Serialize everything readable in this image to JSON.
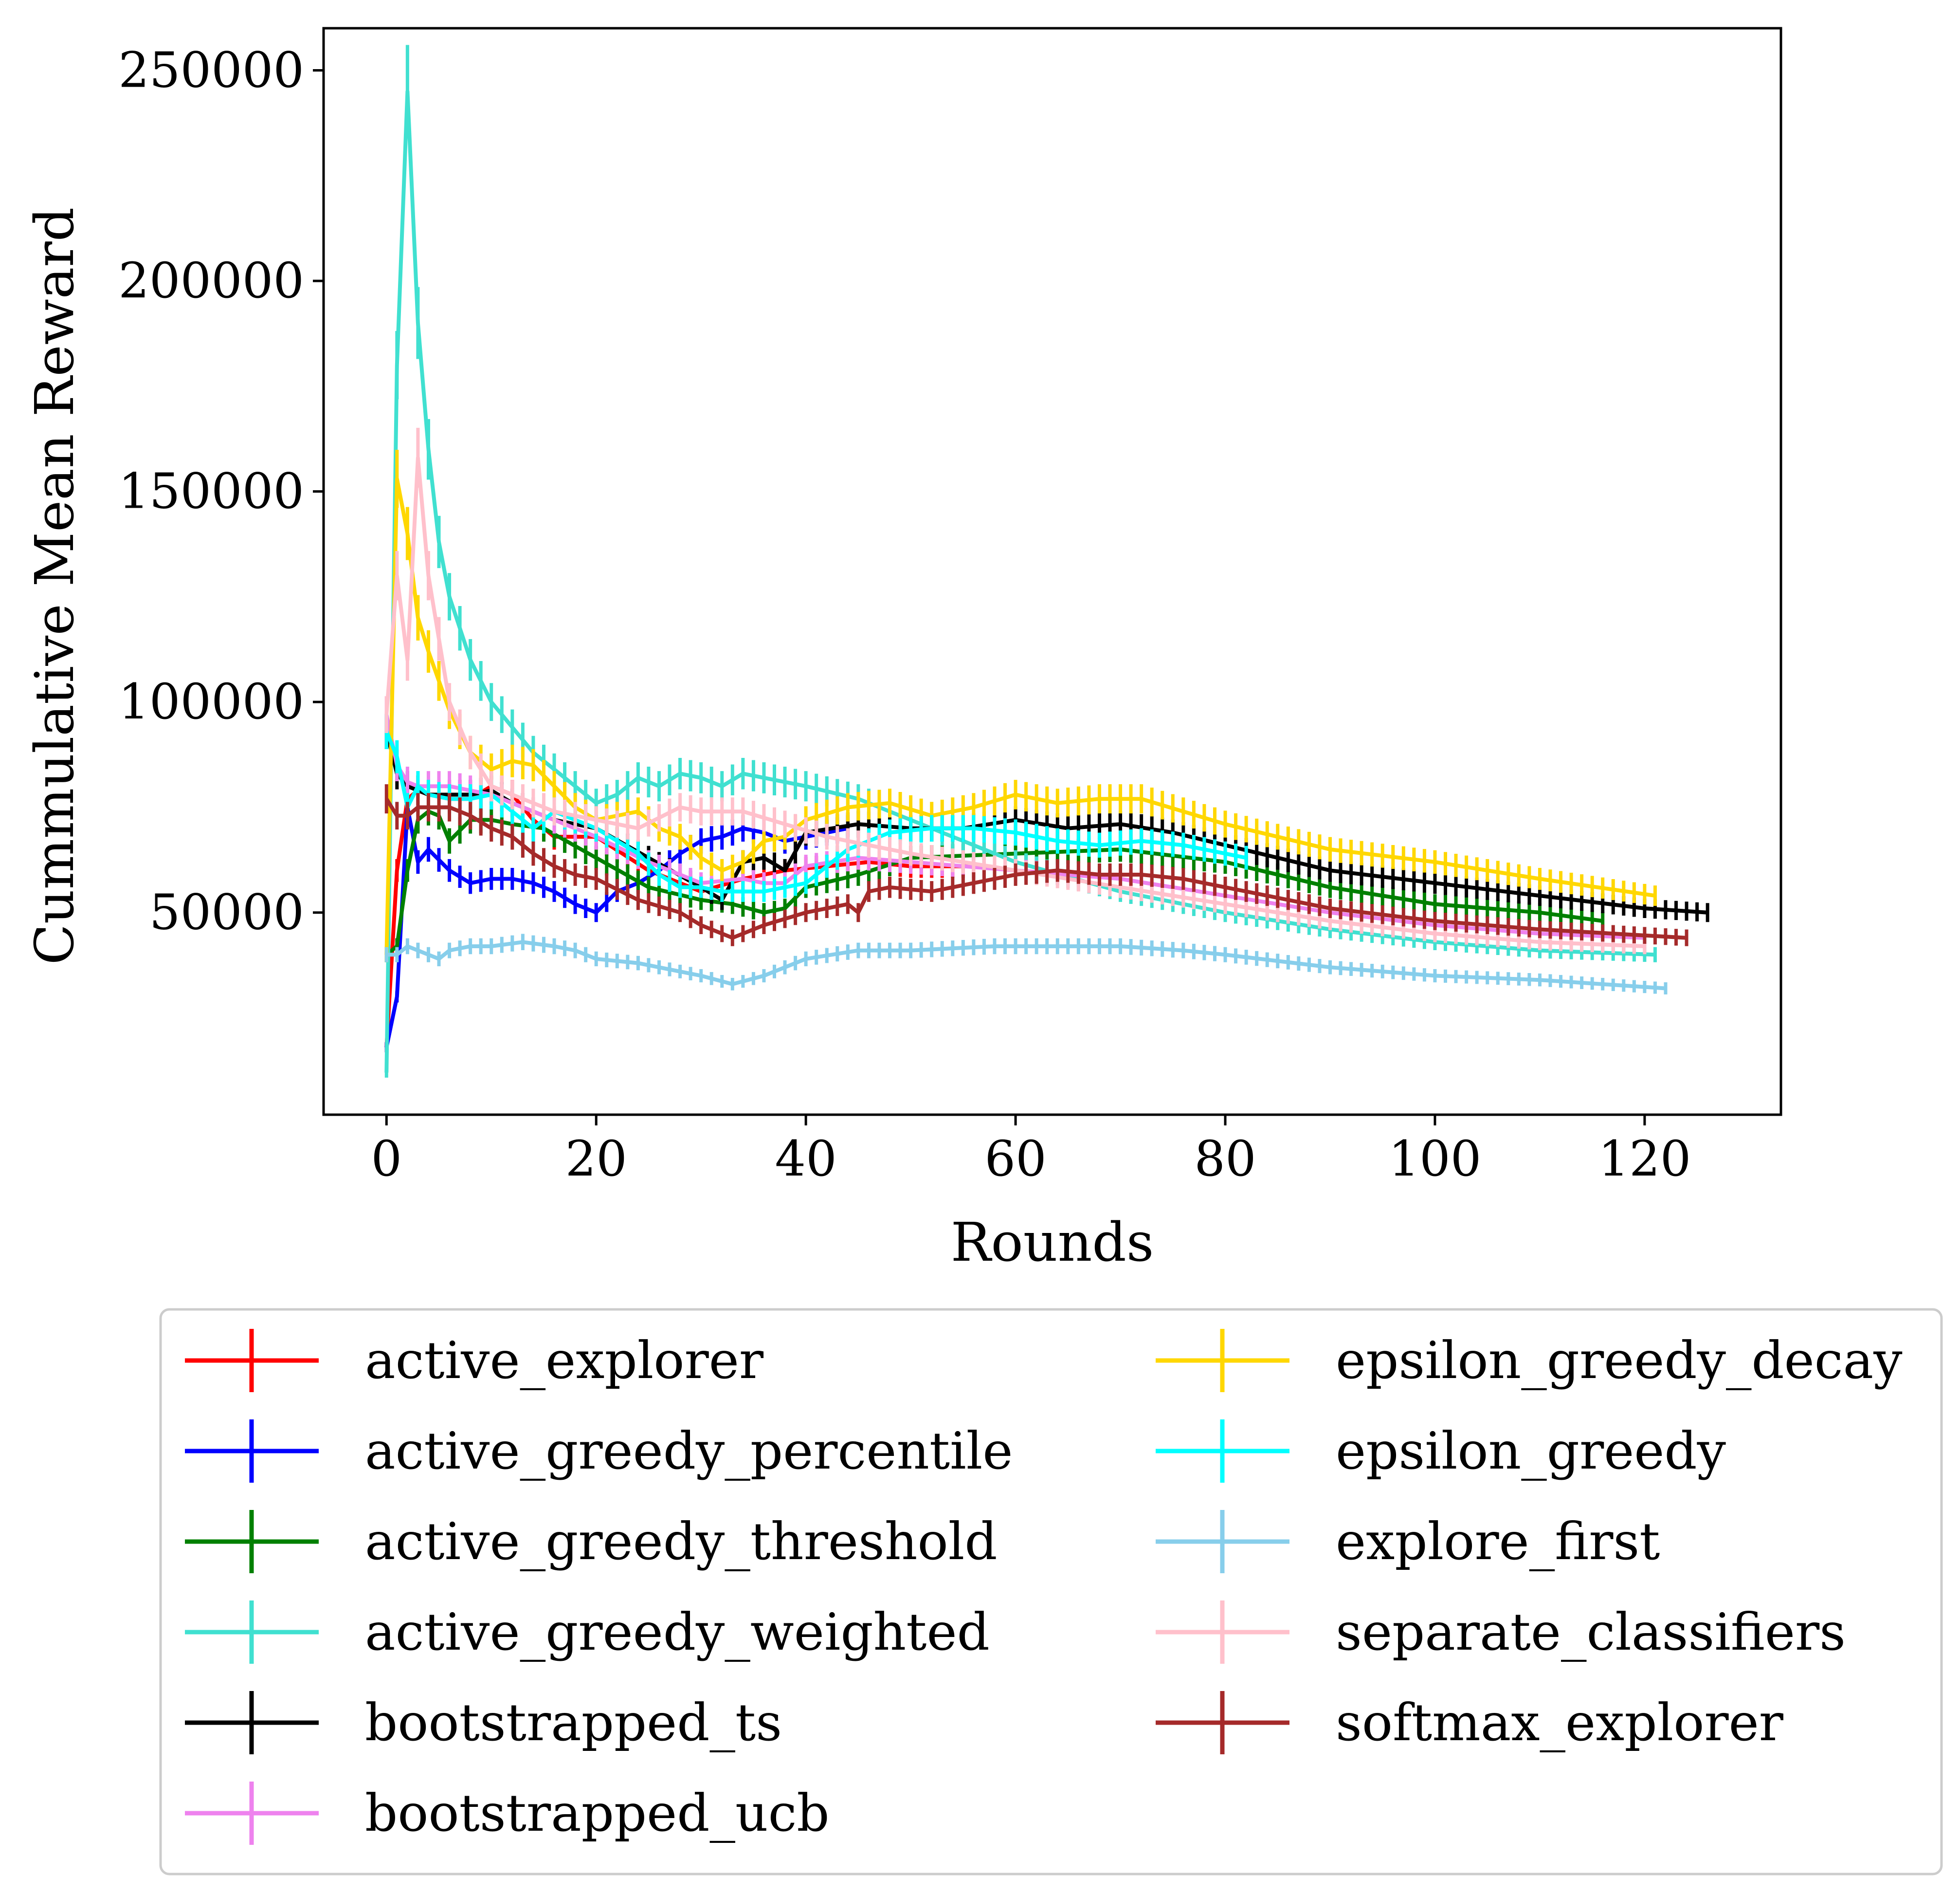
{
  "chart_data": {
    "type": "line",
    "xlabel": "Rounds",
    "ylabel": "Cummulative Mean Reward",
    "xlim": [
      -6,
      133
    ],
    "ylim": [
      2000,
      260000
    ],
    "xticks": [
      0,
      20,
      40,
      60,
      80,
      100,
      120
    ],
    "yticks": [
      50000,
      100000,
      150000,
      200000,
      250000
    ],
    "xtick_labels": [
      "0",
      "20",
      "40",
      "60",
      "80",
      "100",
      "120"
    ],
    "ytick_labels": [
      "50000",
      "100000",
      "150000",
      "200000",
      "250000"
    ],
    "legend_position": "below plot, two columns",
    "grid": false,
    "error_bars": true,
    "series": [
      {
        "name": "active_explorer",
        "color": "#ff0000",
        "x": [
          0,
          1,
          2,
          3,
          4,
          6,
          8,
          10,
          12,
          14,
          16,
          20,
          25,
          30,
          34,
          38,
          42,
          46,
          50,
          54,
          57
        ],
        "y": [
          18000,
          60000,
          77000,
          79000,
          78000,
          77000,
          77000,
          80000,
          78000,
          72000,
          68000,
          68000,
          60000,
          55000,
          58000,
          60000,
          61000,
          62000,
          61000,
          61000,
          61000
        ]
      },
      {
        "name": "active_greedy_percentile",
        "color": "#0000ff",
        "x": [
          0,
          1,
          2,
          3,
          4,
          6,
          8,
          10,
          12,
          14,
          16,
          18,
          20,
          22,
          24,
          26,
          28,
          30,
          32,
          34,
          36,
          38,
          40,
          42,
          44
        ],
        "y": [
          18000,
          30000,
          75000,
          62000,
          65000,
          60000,
          57000,
          58000,
          58000,
          57000,
          55000,
          52000,
          50000,
          55000,
          57000,
          60000,
          64000,
          67000,
          68000,
          70000,
          69000,
          67000,
          68000,
          69000,
          70000
        ]
      },
      {
        "name": "active_greedy_threshold",
        "color": "#008000",
        "x": [
          0,
          1,
          2,
          3,
          4,
          5,
          6,
          8,
          10,
          12,
          15,
          20,
          25,
          30,
          33,
          36,
          38,
          40,
          45,
          50,
          60,
          70,
          80,
          90,
          100,
          110,
          116
        ],
        "y": [
          40000,
          42000,
          60000,
          72000,
          74000,
          73000,
          67000,
          72000,
          72000,
          71000,
          70000,
          63000,
          56000,
          53000,
          52000,
          50000,
          51000,
          56000,
          59000,
          63000,
          64000,
          65000,
          62000,
          56000,
          52000,
          50000,
          48000
        ]
      },
      {
        "name": "active_greedy_weighted",
        "color": "#40e0d0",
        "x": [
          0,
          1,
          2,
          3,
          4,
          5,
          6,
          8,
          10,
          12,
          14,
          16,
          18,
          20,
          22,
          24,
          26,
          28,
          30,
          32,
          34,
          36,
          40,
          45,
          50,
          60,
          70,
          80,
          90,
          100,
          110,
          121
        ],
        "y": [
          12000,
          180000,
          245000,
          190000,
          160000,
          138000,
          125000,
          110000,
          100000,
          94000,
          88000,
          84000,
          80000,
          76000,
          78000,
          82000,
          80000,
          83000,
          82000,
          80000,
          83000,
          82000,
          80000,
          77000,
          72000,
          62000,
          55000,
          50000,
          46000,
          43000,
          41000,
          40000
        ]
      },
      {
        "name": "bootstrapped_ts",
        "color": "#000000",
        "x": [
          0,
          1,
          2,
          3,
          4,
          6,
          8,
          10,
          12,
          16,
          20,
          25,
          30,
          32,
          34,
          36,
          38,
          40,
          45,
          50,
          55,
          60,
          65,
          70,
          75,
          80,
          90,
          100,
          110,
          120,
          126
        ],
        "y": [
          93000,
          83000,
          80000,
          79000,
          78000,
          78000,
          78000,
          79000,
          76000,
          72000,
          70000,
          63000,
          56000,
          53000,
          62000,
          63000,
          60000,
          69000,
          71000,
          70000,
          70000,
          72000,
          70000,
          71000,
          69000,
          66000,
          60000,
          57000,
          54000,
          51000,
          50000
        ]
      },
      {
        "name": "bootstrapped_ucb",
        "color": "#ee82ee",
        "x": [
          0,
          1,
          2,
          3,
          4,
          6,
          8,
          10,
          12,
          16,
          20,
          25,
          30,
          34,
          36,
          38,
          40,
          45,
          50,
          60,
          70,
          80,
          90,
          100,
          110,
          120
        ],
        "y": [
          97000,
          85000,
          81000,
          80000,
          80000,
          80000,
          79000,
          78000,
          76000,
          72000,
          68000,
          62000,
          57000,
          58000,
          57000,
          57000,
          61000,
          63000,
          62000,
          60000,
          58000,
          54000,
          50000,
          47000,
          45000,
          44000
        ]
      },
      {
        "name": "epsilon_greedy_decay",
        "color": "#ffd700",
        "x": [
          0,
          1,
          2,
          3,
          4,
          5,
          6,
          8,
          10,
          12,
          14,
          16,
          18,
          20,
          22,
          24,
          26,
          28,
          30,
          32,
          34,
          36,
          38,
          40,
          44,
          48,
          52,
          56,
          60,
          64,
          68,
          72,
          76,
          80,
          90,
          100,
          110,
          121
        ],
        "y": [
          40000,
          153000,
          140000,
          120000,
          112000,
          105000,
          98000,
          88000,
          84000,
          86000,
          85000,
          80000,
          75000,
          72000,
          73000,
          74000,
          70000,
          68000,
          63000,
          60000,
          62000,
          67000,
          68000,
          72000,
          75000,
          76000,
          73000,
          75000,
          78000,
          76000,
          77000,
          77000,
          74000,
          71000,
          65000,
          62000,
          58000,
          54000
        ]
      },
      {
        "name": "epsilon_greedy",
        "color": "#00ffff",
        "x": [
          0,
          1,
          2,
          3,
          4,
          6,
          8,
          10,
          12,
          14,
          16,
          18,
          20,
          22,
          24,
          26,
          28,
          30,
          32,
          34,
          36,
          38,
          40,
          44,
          48,
          52,
          56,
          60,
          64,
          68,
          72,
          76,
          80,
          82
        ],
        "y": [
          93000,
          87000,
          75000,
          80000,
          78000,
          77000,
          77000,
          78000,
          74000,
          70000,
          74000,
          72000,
          70000,
          67000,
          64000,
          59000,
          56000,
          56000,
          55000,
          55000,
          55000,
          56000,
          57000,
          65000,
          69000,
          70000,
          70000,
          69000,
          67000,
          66000,
          67000,
          66000,
          64000,
          63000
        ]
      },
      {
        "name": "explore_first",
        "color": "#87ceeb",
        "x": [
          0,
          1,
          2,
          3,
          4,
          5,
          6,
          8,
          10,
          13,
          16,
          18,
          20,
          24,
          28,
          30,
          33,
          36,
          40,
          45,
          50,
          58,
          64,
          70,
          76,
          80,
          90,
          100,
          110,
          122
        ],
        "y": [
          40000,
          40000,
          42000,
          41000,
          40000,
          39000,
          41000,
          42000,
          42000,
          43000,
          42000,
          41000,
          39000,
          38000,
          36000,
          35000,
          33000,
          35000,
          39000,
          41000,
          41000,
          42000,
          42000,
          42000,
          41000,
          40000,
          37000,
          35000,
          34000,
          32000
        ]
      },
      {
        "name": "separate_classifiers",
        "color": "#ffc0cb",
        "x": [
          0,
          1,
          2,
          3,
          4,
          5,
          6,
          8,
          10,
          12,
          16,
          20,
          24,
          28,
          30,
          34,
          38,
          42,
          46,
          50,
          60,
          70,
          80,
          90,
          100,
          110,
          120
        ],
        "y": [
          97000,
          130000,
          110000,
          158000,
          130000,
          115000,
          100000,
          88000,
          80000,
          78000,
          74000,
          72000,
          70000,
          75000,
          74000,
          74000,
          71000,
          68000,
          66000,
          64000,
          60000,
          56000,
          52000,
          48000,
          45000,
          43000,
          42000
        ]
      },
      {
        "name": "softmax_explorer",
        "color": "#a52a2a",
        "x": [
          0,
          1,
          2,
          3,
          4,
          6,
          8,
          10,
          12,
          14,
          16,
          18,
          20,
          24,
          28,
          30,
          32,
          33,
          36,
          40,
          44,
          45,
          46,
          48,
          52,
          56,
          60,
          64,
          68,
          72,
          76,
          80,
          90,
          100,
          110,
          124
        ],
        "y": [
          77000,
          73000,
          73000,
          75000,
          75000,
          75000,
          73000,
          70000,
          68000,
          64000,
          61000,
          59000,
          58000,
          53000,
          50000,
          47000,
          45000,
          44000,
          47000,
          50000,
          52000,
          50000,
          55000,
          56000,
          55000,
          57000,
          59000,
          60000,
          59000,
          59000,
          58000,
          56000,
          51000,
          48000,
          46000,
          44000
        ]
      }
    ]
  }
}
